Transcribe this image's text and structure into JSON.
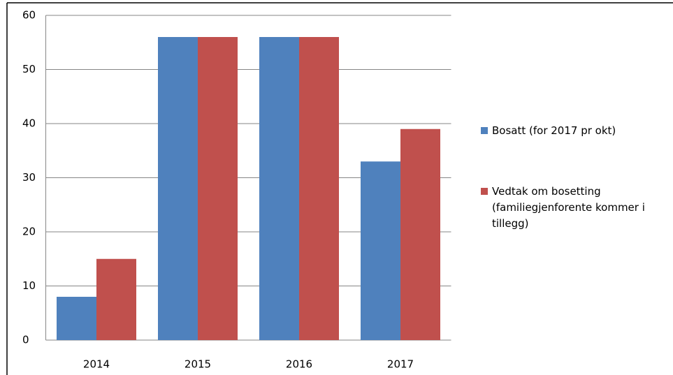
{
  "chart_data": {
    "type": "bar",
    "categories": [
      "2014",
      "2015",
      "2016",
      "2017"
    ],
    "series": [
      {
        "name": "Bosatt (for 2017 pr okt)",
        "color": "#4f81bd",
        "values": [
          8,
          56,
          56,
          33
        ]
      },
      {
        "name": "Vedtak om bosetting (familiegjenforente kommer i tillegg)",
        "color": "#c0504d",
        "values": [
          15,
          56,
          56,
          39
        ]
      }
    ],
    "ylim": [
      0,
      60
    ],
    "yticks": [
      0,
      10,
      20,
      30,
      40,
      50,
      60
    ],
    "grid": true,
    "legend": "right"
  }
}
